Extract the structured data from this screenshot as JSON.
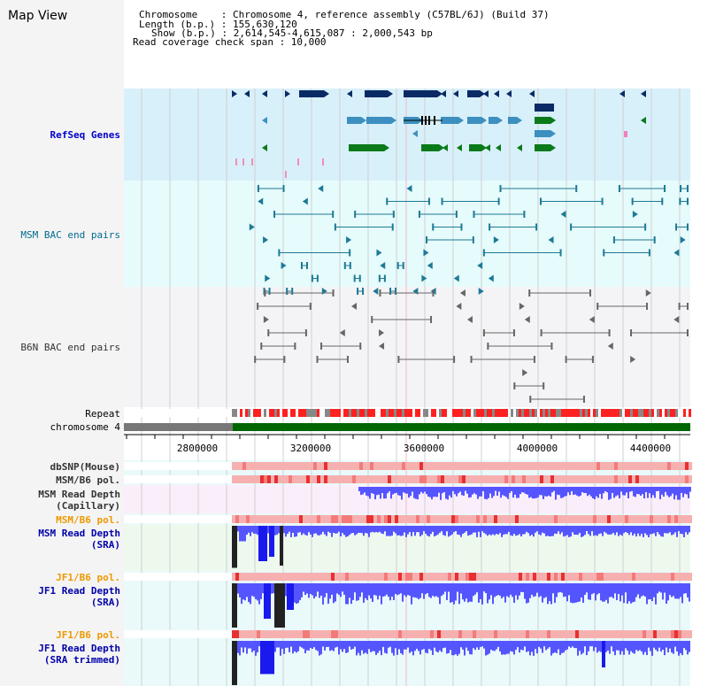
{
  "view": {
    "title": "Map View"
  },
  "header": {
    "chromosome_line": "Chromosome    : Chromosome 4, reference assembly (C57BL/6J) (Build 37)",
    "length_line": "Length (b.p.) : 155,630,120",
    "show_line": "Show (b.p.) : 2,614,545-4,615,087 : 2,000,543 bp",
    "coverage_line": "Read coverage check span : 10,000"
  },
  "tracks": {
    "refseq": "RefSeq Genes",
    "msm_bac": "MSM BAC end pairs",
    "b6n_bac": "B6N BAC end pairs",
    "repeat": "Repeat",
    "chromosome": "chromosome 4",
    "dbsnp": "dbSNP(Mouse)",
    "msm_b6_pol_1": "MSM/B6 pol.",
    "msm_depth_cap": "MSM Read Depth\n(Capillary)",
    "msm_b6_pol_2": "MSM/B6 pol.",
    "msm_depth_sra": "MSM Read Depth\n(SRA)",
    "jf1_b6_pol_1": "JF1/B6 pol.",
    "jf1_depth_sra": "JF1 Read Depth\n(SRA)",
    "jf1_b6_pol_2": "JF1/B6 pol.",
    "jf1_depth_trim": "JF1 Read Depth\n(SRA trimmed)"
  },
  "axis": {
    "ticks": [
      "2800000",
      "3200000",
      "3600000",
      "4000000",
      "4400000"
    ]
  },
  "colors": {
    "refseq_bg": "#d8f0fa",
    "msm_bg": "#e6fbfb",
    "b6n_bg": "#f4f4f6",
    "repeat_red": "#ff2020",
    "chrom_green": "#006600",
    "chrom_gray": "#777777",
    "depth_blue": "#5555ff",
    "pink": "#f4a8a8"
  }
}
